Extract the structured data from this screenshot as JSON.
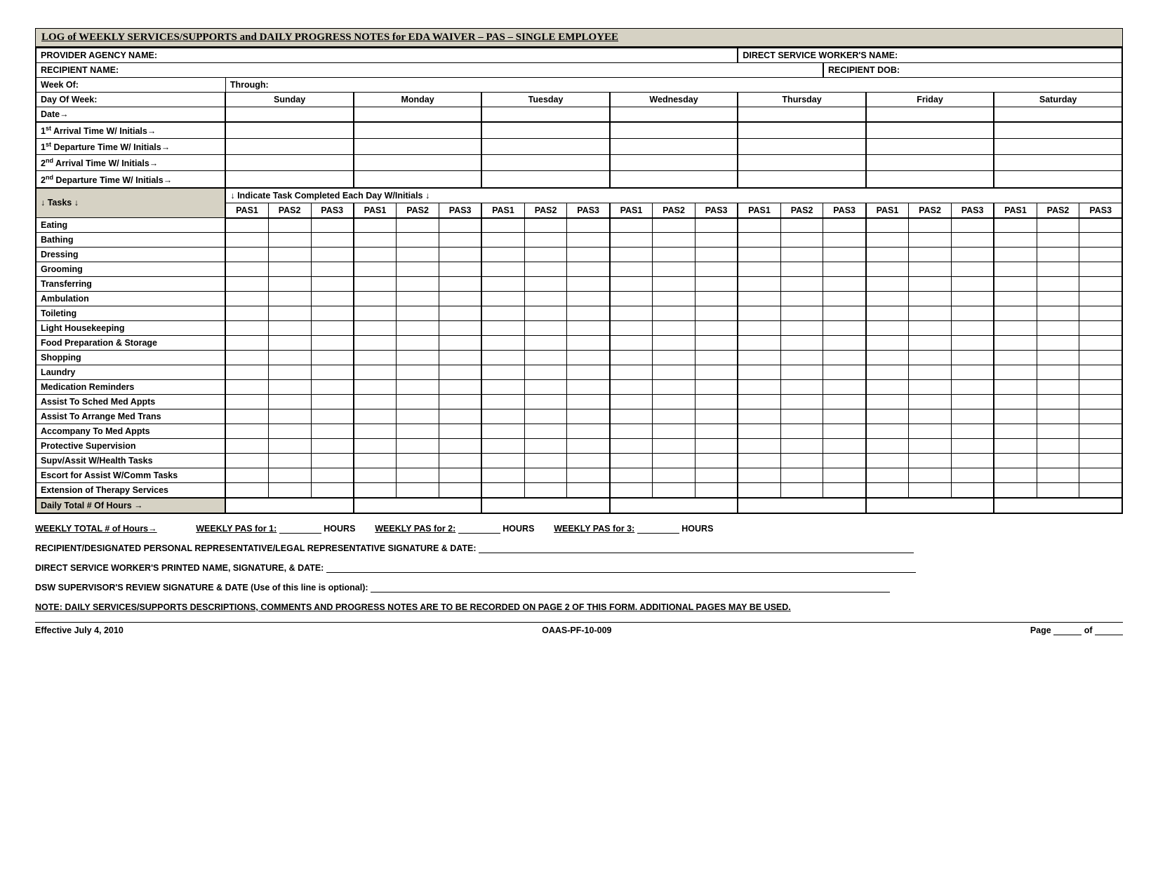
{
  "title": "LOG of WEEKLY SERVICES/SUPPORTS and DAILY PROGRESS NOTES for EDA WAIVER – PAS – SINGLE EMPLOYEE",
  "header": {
    "provider_agency": "PROVIDER AGENCY NAME:",
    "dsw_name": "DIRECT SERVICE WORKER'S NAME:",
    "recipient_name": "RECIPIENT NAME:",
    "recipient_dob": "RECIPIENT DOB:",
    "week_of": "Week Of:",
    "through": "Through:",
    "day_of_week": "Day Of Week:",
    "date": "Date→",
    "arrival1": "1st Arrival Time W/ Initials→",
    "departure1": "1st Departure Time W/ Initials→",
    "arrival2": "2nd Arrival Time W/ Initials→",
    "departure2": "2nd Departure Time W/ Initials→"
  },
  "days": [
    "Sunday",
    "Monday",
    "Tuesday",
    "Wednesday",
    "Thursday",
    "Friday",
    "Saturday"
  ],
  "pas_cols": [
    "PAS1",
    "PAS2",
    "PAS3"
  ],
  "tasks_header_left": "↓   Tasks   ↓",
  "tasks_header_right": "↓   Indicate Task Completed Each Day W/Initials   ↓",
  "tasks": [
    "Eating",
    "Bathing",
    "Dressing",
    "Grooming",
    "Transferring",
    "Ambulation",
    "Toileting",
    "Light Housekeeping",
    "Food Preparation & Storage",
    "Shopping",
    "Laundry",
    "Medication Reminders",
    "Assist To Sched Med Appts",
    "Assist To Arrange Med Trans",
    "Accompany To Med Appts",
    "Protective Supervision",
    "Supv/Assit W/Health Tasks",
    "Escort for Assist W/Comm Tasks",
    "Extension of Therapy Services"
  ],
  "daily_total": "Daily Total # Of Hours →",
  "weekly": {
    "total": "WEEKLY TOTAL # of Hours→",
    "pas1": "WEEKLY PAS for 1:",
    "pas2": "WEEKLY PAS for 2:",
    "pas3": "WEEKLY PAS for 3:",
    "hours": "HOURS"
  },
  "signatures": {
    "recipient": "RECIPIENT/DESIGNATED PERSONAL REPRESENTATIVE/LEGAL REPRESENTATIVE SIGNATURE & DATE:",
    "dsw": "DIRECT SERVICE WORKER'S PRINTED NAME, SIGNATURE, & DATE:",
    "supervisor": "DSW SUPERVISOR'S REVIEW SIGNATURE & DATE (Use of this line is optional):",
    "note": "NOTE: DAILY SERVICES/SUPPORTS DESCRIPTIONS, COMMENTS AND PROGRESS NOTES ARE TO BE RECORDED ON PAGE 2 OF THIS FORM.  ADDITIONAL PAGES MAY BE USED."
  },
  "footer": {
    "effective": "Effective July 4, 2010",
    "form_id": "OAAS-PF-10-009",
    "page": "Page",
    "of": "of"
  },
  "colors": {
    "shade": "#d6d2c4",
    "border": "#000000",
    "background": "#ffffff"
  }
}
